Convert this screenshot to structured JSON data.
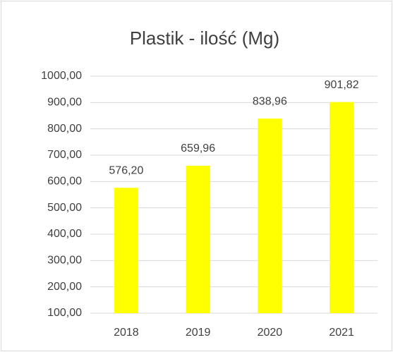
{
  "chart_data": {
    "type": "bar",
    "title": "Plastik - ilość (Mg)",
    "categories": [
      "2018",
      "2019",
      "2020",
      "2021"
    ],
    "values": [
      576.2,
      659.96,
      838.96,
      901.82
    ],
    "value_labels": [
      "576,20",
      "659,96",
      "838,96",
      "901,82"
    ],
    "color": "#ffff00",
    "ylim": [
      100,
      1000
    ],
    "yticks": [
      {
        "value": 100,
        "label": "100,00"
      },
      {
        "value": 200,
        "label": "200,00"
      },
      {
        "value": 300,
        "label": "300,00"
      },
      {
        "value": 400,
        "label": "400,00"
      },
      {
        "value": 500,
        "label": "500,00"
      },
      {
        "value": 600,
        "label": "600,00"
      },
      {
        "value": 700,
        "label": "700,00"
      },
      {
        "value": 800,
        "label": "800,00"
      },
      {
        "value": 900,
        "label": "900,00"
      },
      {
        "value": 1000,
        "label": "1000,00"
      }
    ],
    "grid": true
  }
}
